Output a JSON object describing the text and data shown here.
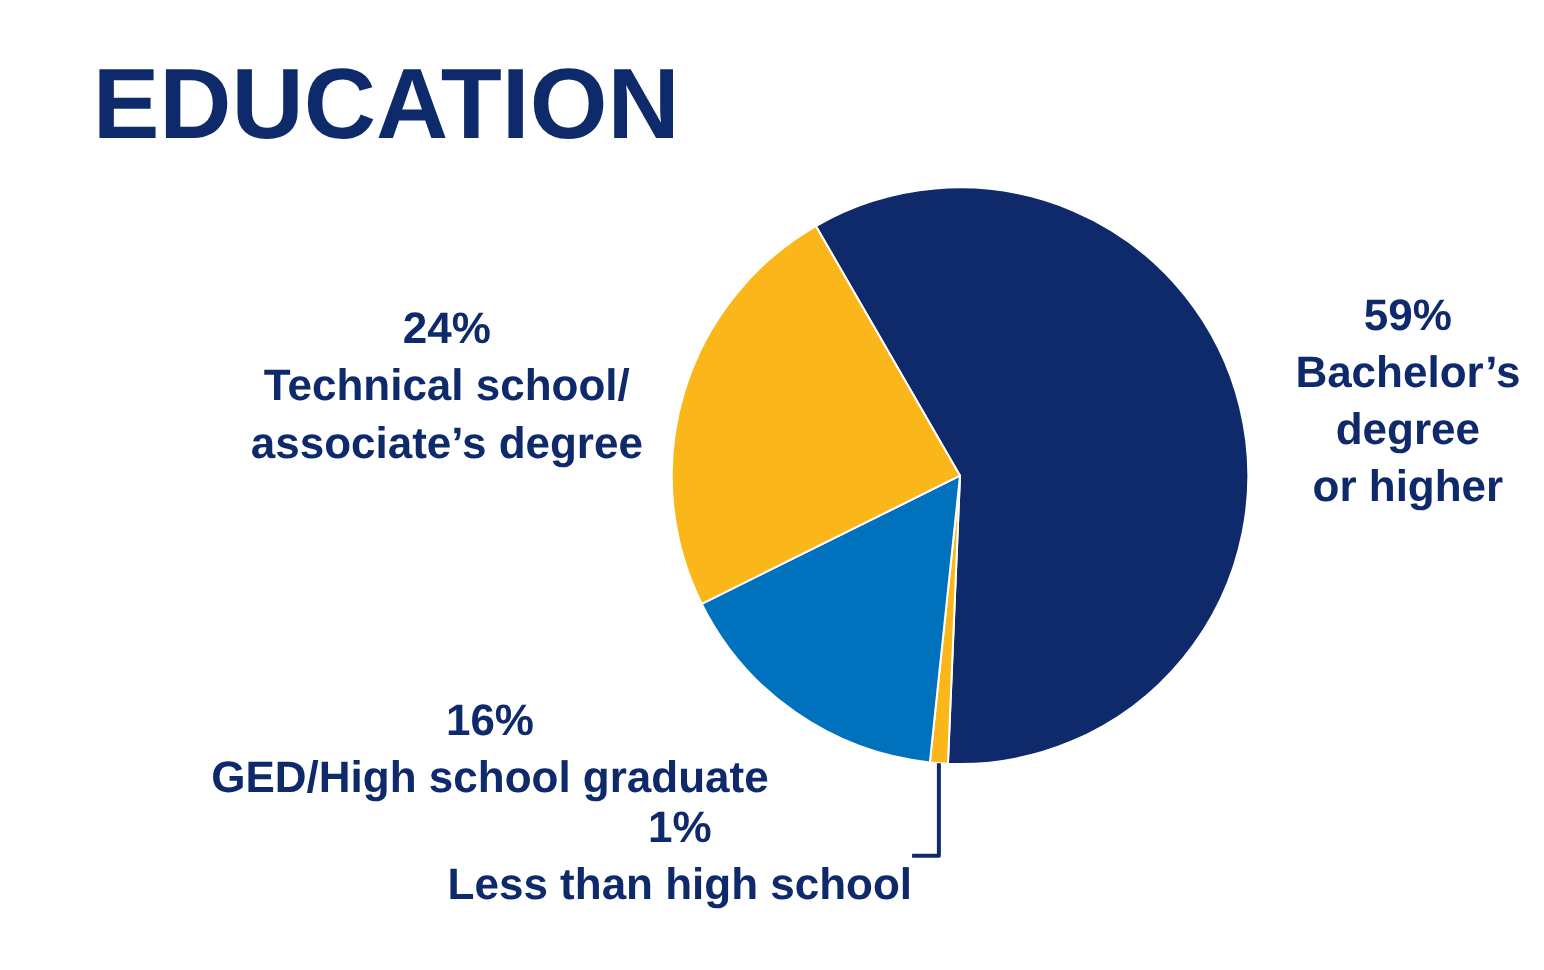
{
  "chart_data": {
    "type": "pie",
    "title": "EDUCATION",
    "categories": [
      "Bachelor’s\ndegree\nor higher",
      "Less than high school",
      "GED/High school graduate",
      "Technical school/\nassociate’s degree"
    ],
    "values": [
      59,
      1,
      16,
      24
    ],
    "colors": [
      "#0f2a6b",
      "#fbb619",
      "#0071bc",
      "#fbb619"
    ],
    "value_labels": [
      "59%",
      "1%",
      "16%",
      "24%"
    ],
    "legend": false
  }
}
